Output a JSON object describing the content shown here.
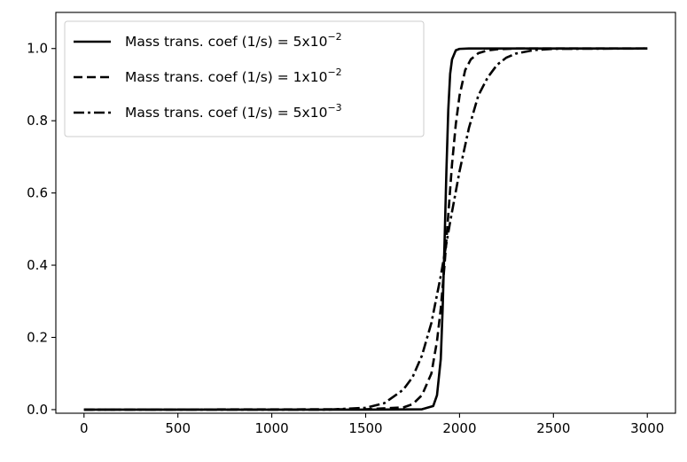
{
  "chart_data": {
    "type": "line",
    "title": "",
    "xlabel": "",
    "ylabel": "",
    "xlim": [
      -150,
      3150
    ],
    "ylim": [
      -0.01,
      1.1
    ],
    "xticks": [
      "0",
      "500",
      "1000",
      "1500",
      "2000",
      "2500",
      "3000"
    ],
    "yticks": [
      "0.0",
      "0.2",
      "0.4",
      "0.6",
      "0.8",
      "1.0"
    ],
    "grid": false,
    "legend_position": "top-left",
    "series": [
      {
        "name": "Mass trans. coef (1/s) = 5x10",
        "exponent": "−2",
        "line_style": "solid",
        "color": "#000000",
        "x": [
          0,
          1500,
          1800,
          1860,
          1880,
          1900,
          1910,
          1920,
          1930,
          1940,
          1950,
          1960,
          1980,
          2000,
          2050,
          3000
        ],
        "y": [
          0.0,
          0.0,
          0.001,
          0.01,
          0.04,
          0.14,
          0.28,
          0.46,
          0.66,
          0.83,
          0.93,
          0.97,
          0.995,
          0.999,
          1.0,
          1.0
        ]
      },
      {
        "name": "Mass trans. coef (1/s) = 1x10",
        "exponent": "−2",
        "line_style": "dashed",
        "color": "#000000",
        "x": [
          0,
          1500,
          1700,
          1750,
          1800,
          1850,
          1880,
          1900,
          1920,
          1940,
          1960,
          1980,
          2000,
          2030,
          2060,
          2100,
          2150,
          2200,
          2300,
          3000
        ],
        "y": [
          0.0,
          0.001,
          0.006,
          0.015,
          0.04,
          0.1,
          0.19,
          0.28,
          0.4,
          0.54,
          0.68,
          0.79,
          0.87,
          0.94,
          0.97,
          0.987,
          0.995,
          0.998,
          1.0,
          1.0
        ]
      },
      {
        "name": "Mass trans. coef (1/s) = 5x10",
        "exponent": "−3",
        "line_style": "dashdot",
        "color": "#000000",
        "x": [
          0,
          1300,
          1500,
          1600,
          1700,
          1750,
          1800,
          1850,
          1900,
          1950,
          2000,
          2050,
          2100,
          2150,
          2200,
          2250,
          2300,
          2400,
          2500,
          3000
        ],
        "y": [
          0.0,
          0.0,
          0.005,
          0.018,
          0.055,
          0.09,
          0.15,
          0.24,
          0.37,
          0.52,
          0.66,
          0.78,
          0.87,
          0.92,
          0.955,
          0.975,
          0.986,
          0.996,
          0.999,
          1.0
        ]
      }
    ]
  }
}
